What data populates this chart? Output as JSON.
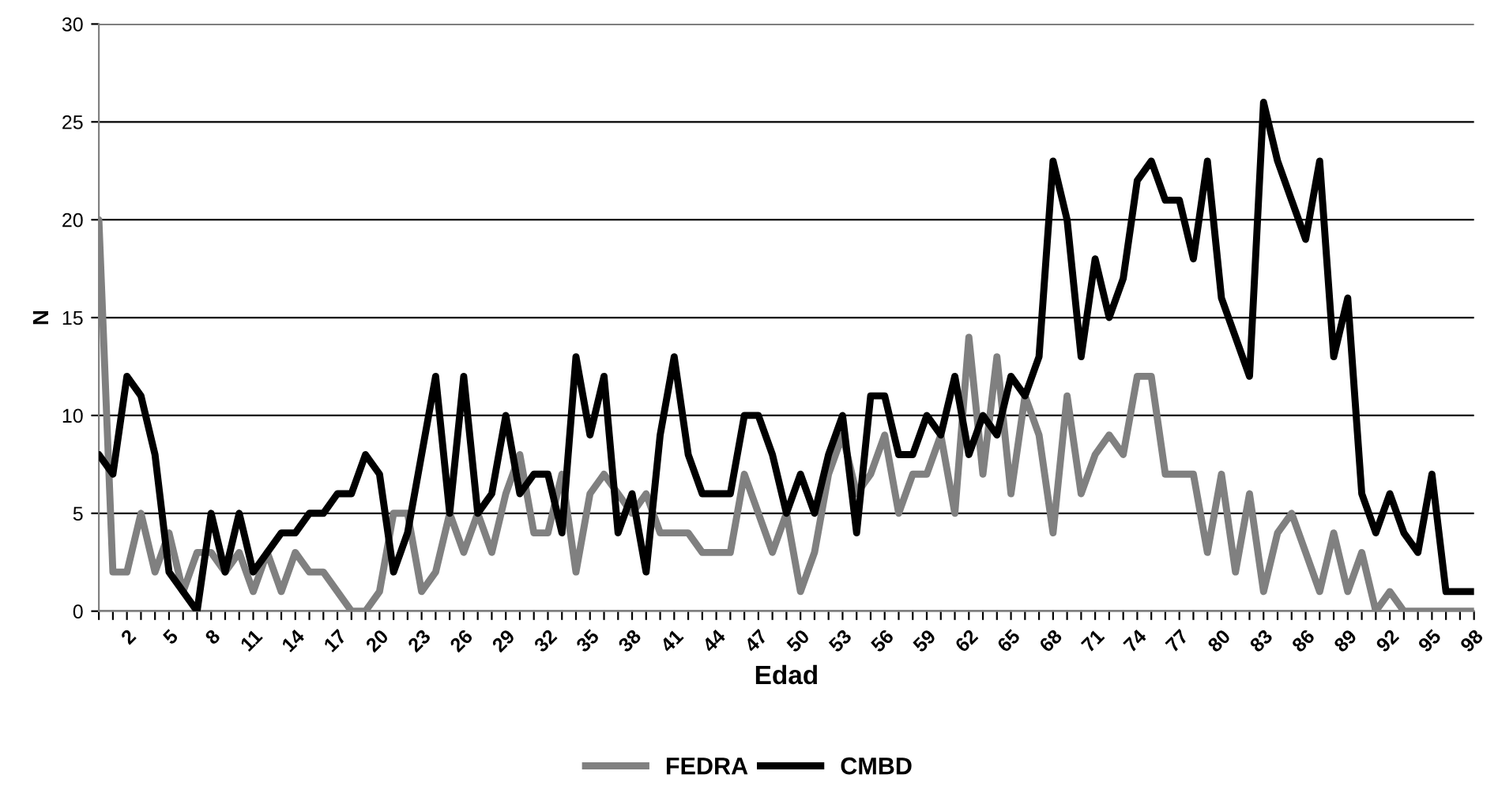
{
  "chart_data": {
    "type": "line",
    "xlabel": "Edad",
    "ylabel": "N",
    "categories": [
      null,
      null,
      "2",
      null,
      null,
      "5",
      null,
      null,
      "8",
      null,
      null,
      "11",
      null,
      null,
      "14",
      null,
      null,
      "17",
      null,
      null,
      "20",
      null,
      null,
      "23",
      null,
      null,
      "26",
      null,
      null,
      "29",
      null,
      null,
      "32",
      null,
      null,
      "35",
      null,
      null,
      "38",
      null,
      null,
      "41",
      null,
      null,
      "44",
      null,
      null,
      "47",
      null,
      null,
      "50",
      null,
      null,
      "53",
      null,
      null,
      "56",
      null,
      null,
      "59",
      null,
      null,
      "62",
      null,
      null,
      "65",
      null,
      null,
      "68",
      null,
      null,
      "71",
      null,
      null,
      "74",
      null,
      null,
      "77",
      null,
      null,
      "80",
      null,
      null,
      "83",
      null,
      null,
      "86",
      null,
      null,
      "89",
      null,
      null,
      "92",
      null,
      null,
      "95",
      null,
      null,
      "98"
    ],
    "series": [
      {
        "name": "FEDRA",
        "color": "#808080",
        "values": [
          20,
          2,
          2,
          5,
          2,
          4,
          1,
          3,
          3,
          2,
          3,
          1,
          3,
          1,
          3,
          2,
          2,
          1,
          0,
          0,
          1,
          5,
          5,
          1,
          2,
          5,
          3,
          5,
          3,
          6,
          8,
          4,
          4,
          7,
          2,
          6,
          7,
          6,
          5,
          6,
          4,
          4,
          4,
          3,
          3,
          3,
          7,
          5,
          3,
          5,
          1,
          3,
          7,
          9,
          6,
          7,
          9,
          5,
          7,
          7,
          9,
          5,
          14,
          7,
          13,
          6,
          11,
          9,
          4,
          11,
          6,
          8,
          9,
          8,
          12,
          12,
          7,
          7,
          7,
          3,
          7,
          2,
          6,
          1,
          4,
          5,
          3,
          1,
          4,
          1,
          3,
          0,
          1,
          0,
          0,
          0,
          0,
          0,
          0
        ]
      },
      {
        "name": "CMBD",
        "color": "#000000",
        "values": [
          8,
          7,
          12,
          11,
          8,
          2,
          1,
          0,
          5,
          2,
          5,
          2,
          3,
          4,
          4,
          5,
          5,
          6,
          6,
          8,
          7,
          2,
          4,
          8,
          12,
          5,
          12,
          5,
          6,
          10,
          6,
          7,
          7,
          4,
          13,
          9,
          12,
          4,
          6,
          2,
          9,
          13,
          8,
          6,
          6,
          6,
          10,
          10,
          8,
          5,
          7,
          5,
          8,
          10,
          4,
          11,
          11,
          8,
          8,
          10,
          9,
          12,
          8,
          10,
          9,
          12,
          11,
          13,
          23,
          20,
          13,
          18,
          15,
          17,
          22,
          23,
          21,
          21,
          18,
          23,
          16,
          14,
          12,
          26,
          23,
          21,
          19,
          23,
          13,
          16,
          6,
          4,
          6,
          4,
          3,
          7,
          1,
          1,
          1
        ]
      }
    ],
    "ylim": [
      0,
      30
    ],
    "yticks": [
      0,
      5,
      10,
      15,
      20,
      25,
      30
    ],
    "grid": "y",
    "legend": "bottom",
    "marker": "none",
    "line_style": "solid"
  }
}
